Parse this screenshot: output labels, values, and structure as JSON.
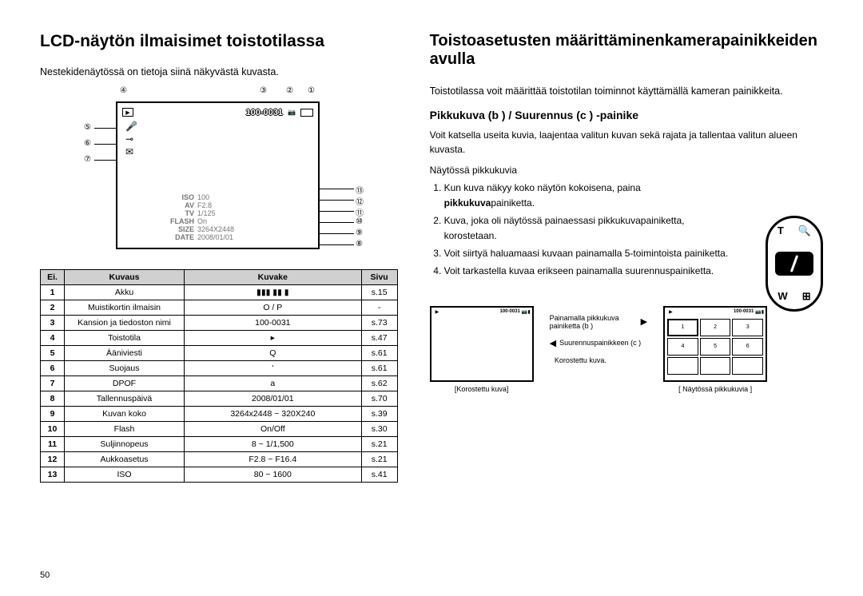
{
  "pageNumber": "50",
  "left": {
    "title": "LCD-näytön ilmaisimet toistotilassa",
    "intro": "Nestekidenäytössä on tietoja siinä näkyvästä kuvasta.",
    "lcd": {
      "fileNumber": "100-0031",
      "info": [
        {
          "label": "ISO",
          "value": "100"
        },
        {
          "label": "AV",
          "value": "F2.8"
        },
        {
          "label": "TV",
          "value": "1/125"
        },
        {
          "label": "FLASH",
          "value": "On"
        },
        {
          "label": "SIZE",
          "value": "3264X2448"
        },
        {
          "label": "DATE",
          "value": "2008/01/01"
        }
      ]
    },
    "callouts_top": [
      "④",
      "③",
      "②",
      "①"
    ],
    "callouts_left": [
      "⑤",
      "⑥",
      "⑦"
    ],
    "callouts_right": [
      "⑬",
      "⑫",
      "⑪",
      "⑩",
      "⑨",
      "⑧"
    ],
    "tableHeaders": [
      "Ei.",
      "Kuvaus",
      "Kuvake",
      "Sivu"
    ],
    "tableRows": [
      [
        "1",
        "Akku",
        "▮▮▮ ▮▮ ▮",
        "s.15"
      ],
      [
        "2",
        "Muistikortin ilmaisin",
        "O / P",
        "-"
      ],
      [
        "3",
        "Kansion ja tiedoston nimi",
        "100-0031",
        "s.73"
      ],
      [
        "4",
        "Toistotila",
        "▸",
        "s.47"
      ],
      [
        "5",
        "Ääniviesti",
        "Q",
        "s.61"
      ],
      [
        "6",
        "Suojaus",
        "'",
        "s.61"
      ],
      [
        "7",
        "DPOF",
        "a",
        "s.62"
      ],
      [
        "8",
        "Tallennuspäivä",
        "2008/01/01",
        "s.70"
      ],
      [
        "9",
        "Kuvan koko",
        "3264x2448 ~ 320X240",
        "s.39"
      ],
      [
        "10",
        "Flash",
        "On/Off",
        "s.30"
      ],
      [
        "11",
        "Suljinnopeus",
        "8 ~ 1/1,500",
        "s.21"
      ],
      [
        "12",
        "Aukkoasetus",
        "F2.8 ~ F16.4",
        "s.21"
      ],
      [
        "13",
        "ISO",
        "80 ~ 1600",
        "s.41"
      ]
    ]
  },
  "right": {
    "title": "Toistoasetusten määrittäminenkamerapainikkeiden avulla",
    "intro": "Toistotilassa voit määrittää toistotilan toiminnot käyttämällä kameran painikkeita.",
    "subhead": "Pikkukuva (b ) / Suurennus (c ) -painike",
    "para": "Voit katsella useita kuvia, laajentaa valitun kuvan sekä rajata ja tallentaa valitun alueen kuvasta.",
    "listLabel": "Näytössä pikkukuvia",
    "steps": [
      "Kun kuva näkyy koko näytön kokoisena, paina <b>pikkukuva</b>painiketta.",
      "Kuva, joka oli näytössä painaessasi pikkukuvapainiketta, korostetaan.",
      "Voit siirtyä haluamaasi kuvaan painamalla 5-toimintoista painiketta.",
      "Voit tarkastella kuvaa erikseen painamalla suurennuspainiketta."
    ],
    "zoom": {
      "top_left": "T",
      "top_right": "🔍",
      "bottom_left": "W",
      "bottom_right": "⊞"
    },
    "figs": {
      "leftNum": "100-0031",
      "leftCaption": "[Korostettu kuva]",
      "midLines": [
        "Painamalla pikkukuva painiketta (b )",
        "Suurennuspainikkeen (c )",
        "Korostettu kuva."
      ],
      "rightNum": "100-0031",
      "thumbs": [
        "1",
        "2",
        "3",
        "4",
        "5",
        "6",
        "",
        "",
        ""
      ],
      "rightCaption": "[ Näytössä pikkukuvia ]"
    }
  }
}
